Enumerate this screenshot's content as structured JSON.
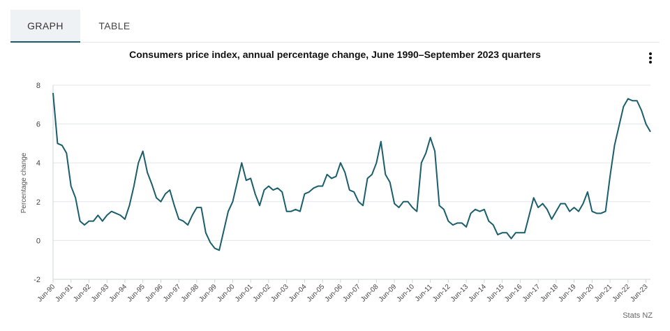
{
  "tabs": [
    {
      "label": "GRAPH",
      "active": true
    },
    {
      "label": "TABLE",
      "active": false
    }
  ],
  "menu_icon": "vertical-ellipsis-icon",
  "credit": "Stats NZ",
  "colors": {
    "line": "#1a5e6b",
    "active_tab_bg": "#eef2f5",
    "active_tab_border": "#1a5e6b",
    "grid": "#e3e6ea"
  },
  "chart_data": {
    "type": "line",
    "title": "Consumers price index, annual percentage change, June 1990–September 2023 quarters",
    "xlabel": "",
    "ylabel": "Percentage change",
    "ylim": [
      -2,
      8
    ],
    "yticks": [
      -2,
      0,
      2,
      4,
      6,
      8
    ],
    "xtick_labels": [
      "Jun-90",
      "Jun-91",
      "Jun-92",
      "Jun-93",
      "Jun-94",
      "Jun-95",
      "Jun-96",
      "Jun-97",
      "Jun-98",
      "Jun-99",
      "Jun-00",
      "Jun-01",
      "Jun-02",
      "Jun-03",
      "Jun-04",
      "Jun-05",
      "Jun-06",
      "Jun-07",
      "Jun-08",
      "Jun-09",
      "Jun-10",
      "Jun-11",
      "Jun-12",
      "Jun-13",
      "Jun-14",
      "Jun-15",
      "Jun-16",
      "Jun-17",
      "Jun-18",
      "Jun-19",
      "Jun-20",
      "Jun-21",
      "Jun-22",
      "Jun-23"
    ],
    "grid": "horizontal",
    "legend": "none",
    "series": [
      {
        "values": [
          7.6,
          5.0,
          4.9,
          4.5,
          2.8,
          2.2,
          1.0,
          0.8,
          1.0,
          1.0,
          1.3,
          1.0,
          1.3,
          1.5,
          1.4,
          1.3,
          1.1,
          1.8,
          2.8,
          4.0,
          4.6,
          3.5,
          2.9,
          2.2,
          2.0,
          2.4,
          2.6,
          1.8,
          1.1,
          1.0,
          0.8,
          1.3,
          1.7,
          1.7,
          0.4,
          -0.1,
          -0.4,
          -0.5,
          0.5,
          1.5,
          2.0,
          3.0,
          4.0,
          3.1,
          3.2,
          2.4,
          1.8,
          2.6,
          2.8,
          2.6,
          2.7,
          2.5,
          1.5,
          1.5,
          1.6,
          1.5,
          2.4,
          2.5,
          2.7,
          2.8,
          2.8,
          3.4,
          3.2,
          3.3,
          4.0,
          3.5,
          2.6,
          2.5,
          2.0,
          1.8,
          3.2,
          3.4,
          4.0,
          5.1,
          3.4,
          3.0,
          1.9,
          1.7,
          2.0,
          2.0,
          1.7,
          1.5,
          4.0,
          4.5,
          5.3,
          4.6,
          1.8,
          1.6,
          1.0,
          0.8,
          0.9,
          0.9,
          0.7,
          1.4,
          1.6,
          1.5,
          1.6,
          1.0,
          0.8,
          0.3,
          0.4,
          0.4,
          0.1,
          0.4,
          0.4,
          0.4,
          1.3,
          2.2,
          1.7,
          1.9,
          1.6,
          1.1,
          1.5,
          1.9,
          1.9,
          1.5,
          1.7,
          1.5,
          1.9,
          2.5,
          1.5,
          1.4,
          1.4,
          1.5,
          3.3,
          4.9,
          5.9,
          6.9,
          7.3,
          7.2,
          7.2,
          6.7,
          6.0,
          5.6
        ]
      }
    ]
  }
}
